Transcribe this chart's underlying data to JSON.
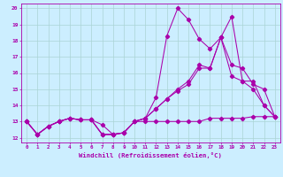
{
  "title": "",
  "xlabel": "Windchill (Refroidissement éolien,°C)",
  "ylabel": "",
  "bg_color": "#cceeff",
  "line_color": "#aa00aa",
  "grid_color": "#aad4d4",
  "xlim": [
    -0.5,
    23.5
  ],
  "ylim": [
    11.7,
    20.3
  ],
  "xticks": [
    0,
    1,
    2,
    3,
    4,
    5,
    6,
    7,
    8,
    9,
    10,
    11,
    12,
    13,
    14,
    15,
    16,
    17,
    18,
    19,
    20,
    21,
    22,
    23
  ],
  "yticks": [
    12,
    13,
    14,
    15,
    16,
    17,
    18,
    19,
    20
  ],
  "series": [
    [
      13.0,
      12.2,
      12.7,
      13.0,
      13.2,
      13.1,
      13.1,
      12.8,
      12.2,
      12.3,
      13.0,
      13.2,
      13.8,
      14.4,
      14.9,
      15.3,
      16.3,
      16.3,
      18.2,
      19.5,
      15.5,
      15.0,
      14.0,
      13.3
    ],
    [
      13.0,
      12.2,
      12.7,
      13.0,
      13.2,
      13.1,
      13.1,
      12.2,
      12.2,
      12.3,
      13.0,
      13.2,
      14.5,
      18.3,
      20.0,
      19.3,
      18.1,
      17.5,
      18.2,
      16.5,
      16.3,
      15.3,
      15.0,
      13.3
    ],
    [
      13.0,
      12.2,
      12.7,
      13.0,
      13.2,
      13.1,
      13.1,
      12.2,
      12.2,
      12.3,
      13.0,
      13.2,
      13.8,
      14.4,
      15.0,
      15.5,
      16.5,
      16.3,
      18.2,
      15.8,
      15.5,
      15.5,
      14.0,
      13.3
    ],
    [
      13.0,
      12.2,
      12.7,
      13.0,
      13.2,
      13.1,
      13.1,
      12.2,
      12.2,
      12.3,
      13.0,
      13.0,
      13.0,
      13.0,
      13.0,
      13.0,
      13.0,
      13.2,
      13.2,
      13.2,
      13.2,
      13.3,
      13.3,
      13.3
    ]
  ]
}
